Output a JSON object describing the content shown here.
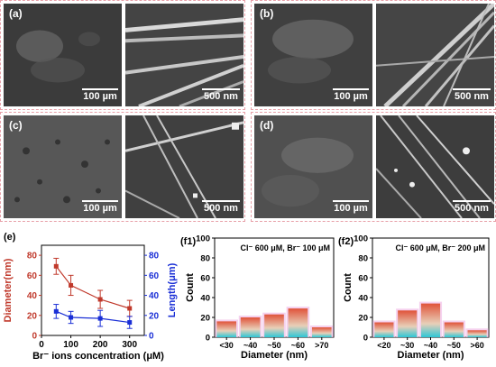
{
  "sem_panels": [
    {
      "label": "(a)",
      "scale_low": "100 µm",
      "scale_high": "500 nm"
    },
    {
      "label": "(b)",
      "scale_low": "100 µm",
      "scale_high": "500 nm"
    },
    {
      "label": "(c)",
      "scale_low": "100 µm",
      "scale_high": "500 nm"
    },
    {
      "label": "(d)",
      "scale_low": "100 µm",
      "scale_high": "500 nm"
    }
  ],
  "chart_data": [
    {
      "panel_label": "(e)",
      "type": "line",
      "x": [
        50,
        100,
        200,
        300
      ],
      "xlim": [
        0,
        350
      ],
      "xticks": [
        0,
        100,
        200,
        300
      ],
      "xlabel": "Br⁻ ions concentration (μM)",
      "series": [
        {
          "name": "Diameter",
          "axis": "left",
          "color": "#c0392b",
          "values": [
            69,
            50,
            36,
            27
          ],
          "errors": [
            8,
            10,
            9,
            8
          ]
        },
        {
          "name": "Length",
          "axis": "right",
          "color": "#1a2fd6",
          "values": [
            24,
            18,
            17,
            13
          ],
          "errors": [
            7,
            6,
            8,
            6
          ]
        }
      ],
      "left_axis": {
        "label": "Diameter(nm)",
        "lim": [
          0,
          90
        ],
        "ticks": [
          0,
          20,
          40,
          60,
          80
        ],
        "color": "#c0392b"
      },
      "right_axis": {
        "label": "Length(μm)",
        "lim": [
          0,
          90
        ],
        "ticks": [
          0,
          20,
          40,
          60,
          80
        ],
        "color": "#1a2fd6"
      }
    },
    {
      "panel_label": "(f1)",
      "type": "bar",
      "annotation": "Cl⁻ 600 μM, Br⁻ 100 μM",
      "categories": [
        "<30",
        "~40",
        "~50",
        "~60",
        ">70"
      ],
      "values": [
        16,
        20,
        23,
        29,
        10
      ],
      "ylim": [
        0,
        100
      ],
      "yticks": [
        0,
        20,
        40,
        60,
        80,
        100
      ],
      "ylabel": "Count",
      "xlabel": "Diameter (nm)"
    },
    {
      "panel_label": "(f2)",
      "type": "bar",
      "annotation": "Cl⁻ 600 μM, Br⁻ 200 μM",
      "categories": [
        "<20",
        "~30",
        "~40",
        "~50",
        ">60"
      ],
      "values": [
        15,
        27,
        34,
        15,
        7
      ],
      "ylim": [
        0,
        100
      ],
      "yticks": [
        0,
        20,
        40,
        60,
        80,
        100
      ],
      "ylabel": "Count",
      "xlabel": "Diameter (nm)"
    }
  ]
}
